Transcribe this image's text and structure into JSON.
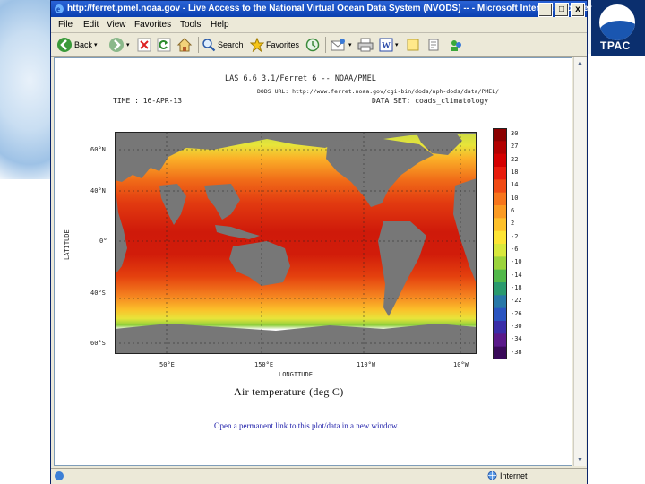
{
  "window": {
    "title": "http://ferret.pmel.noaa.gov - Live Access to the National Virtual Ocean Data System (NVODS) -- - Microsoft Internet Explorer",
    "min_label": "_",
    "max_label": "□",
    "close_label": "x"
  },
  "menu": [
    "File",
    "Edit",
    "View",
    "Favorites",
    "Tools",
    "Help"
  ],
  "toolbar": {
    "back_label": "Back",
    "search_label": "Search",
    "favorites_label": "Favorites"
  },
  "plot": {
    "header_title": "LAS 6.6 3.1/Ferret 6 -- NOAA/PMEL",
    "dods_url": "DODS URL: http://www.ferret.noaa.gov/cgi-bin/dods/nph-dods/data/PMEL/",
    "time_label": "TIME : 16-APR-13",
    "dataset_label": "DATA SET: coads_climatology",
    "lat_labels": [
      "60°N",
      "40°N",
      "0°",
      "40°S",
      "60°S"
    ],
    "lon_labels": [
      "50°E",
      "150°E",
      "110°W",
      "10°W"
    ],
    "y_axis_title": "LATITUDE",
    "x_axis_title": "LONGITUDE",
    "variable_title": "Air temperature (deg C)",
    "colorbar_labels": [
      "30",
      "27",
      "22",
      "18",
      "14",
      "10",
      "6",
      "2",
      "-2",
      "-6",
      "-10",
      "-14",
      "-18",
      "-22",
      "-26",
      "-30",
      "-34",
      "-38"
    ],
    "colorbar_colors": [
      "#8b0000",
      "#b30000",
      "#d40000",
      "#e81c0c",
      "#f04a14",
      "#f7751c",
      "#fb9a22",
      "#fdc02a",
      "#fde434",
      "#d8e83c",
      "#9bd43c",
      "#52b84a",
      "#2a9a6e",
      "#2878a8",
      "#2a54c0",
      "#3a2ea8",
      "#5a1a8a",
      "#3a0a5a"
    ]
  },
  "permalink_text": "Open a permanent link to this plot/data in a new window.",
  "status": {
    "zone": "Internet"
  },
  "logo": {
    "text": "TPAC"
  }
}
